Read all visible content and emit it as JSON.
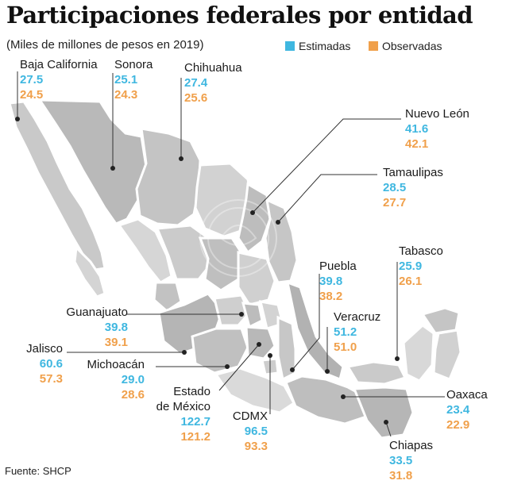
{
  "title": "Participaciones federales por entidad",
  "subtitle": "(Miles de millones de pesos en 2019)",
  "legend": {
    "estimated": {
      "label": "Estimadas",
      "color": "#3fb7e0"
    },
    "observed": {
      "label": "Observadas",
      "color": "#f0a04b"
    }
  },
  "states": [
    {
      "name": "Baja California",
      "estimated": "27.5",
      "observed": "24.5"
    },
    {
      "name": "Sonora",
      "estimated": "25.1",
      "observed": "24.3"
    },
    {
      "name": "Chihuahua",
      "estimated": "27.4",
      "observed": "25.6"
    },
    {
      "name": "Nuevo León",
      "estimated": "41.6",
      "observed": "42.1"
    },
    {
      "name": "Tamaulipas",
      "estimated": "28.5",
      "observed": "27.7"
    },
    {
      "name": "Tabasco",
      "estimated": "25.9",
      "observed": "26.1"
    },
    {
      "name": "Puebla",
      "estimated": "39.8",
      "observed": "38.2"
    },
    {
      "name": "Veracruz",
      "estimated": "51.2",
      "observed": "51.0"
    },
    {
      "name": "Guanajuato",
      "estimated": "39.8",
      "observed": "39.1"
    },
    {
      "name": "Jalisco",
      "estimated": "60.6",
      "observed": "57.3"
    },
    {
      "name": "Michoacán",
      "estimated": "29.0",
      "observed": "28.6"
    },
    {
      "name": "Estado de México",
      "name_line1": "Estado",
      "name_line2": "de México",
      "estimated": "122.7",
      "observed": "121.2"
    },
    {
      "name": "CDMX",
      "estimated": "96.5",
      "observed": "93.3"
    },
    {
      "name": "Oaxaca",
      "estimated": "23.4",
      "observed": "22.9"
    },
    {
      "name": "Chiapas",
      "estimated": "33.5",
      "observed": "31.8"
    }
  ],
  "source": "Fuente: SHCP"
}
